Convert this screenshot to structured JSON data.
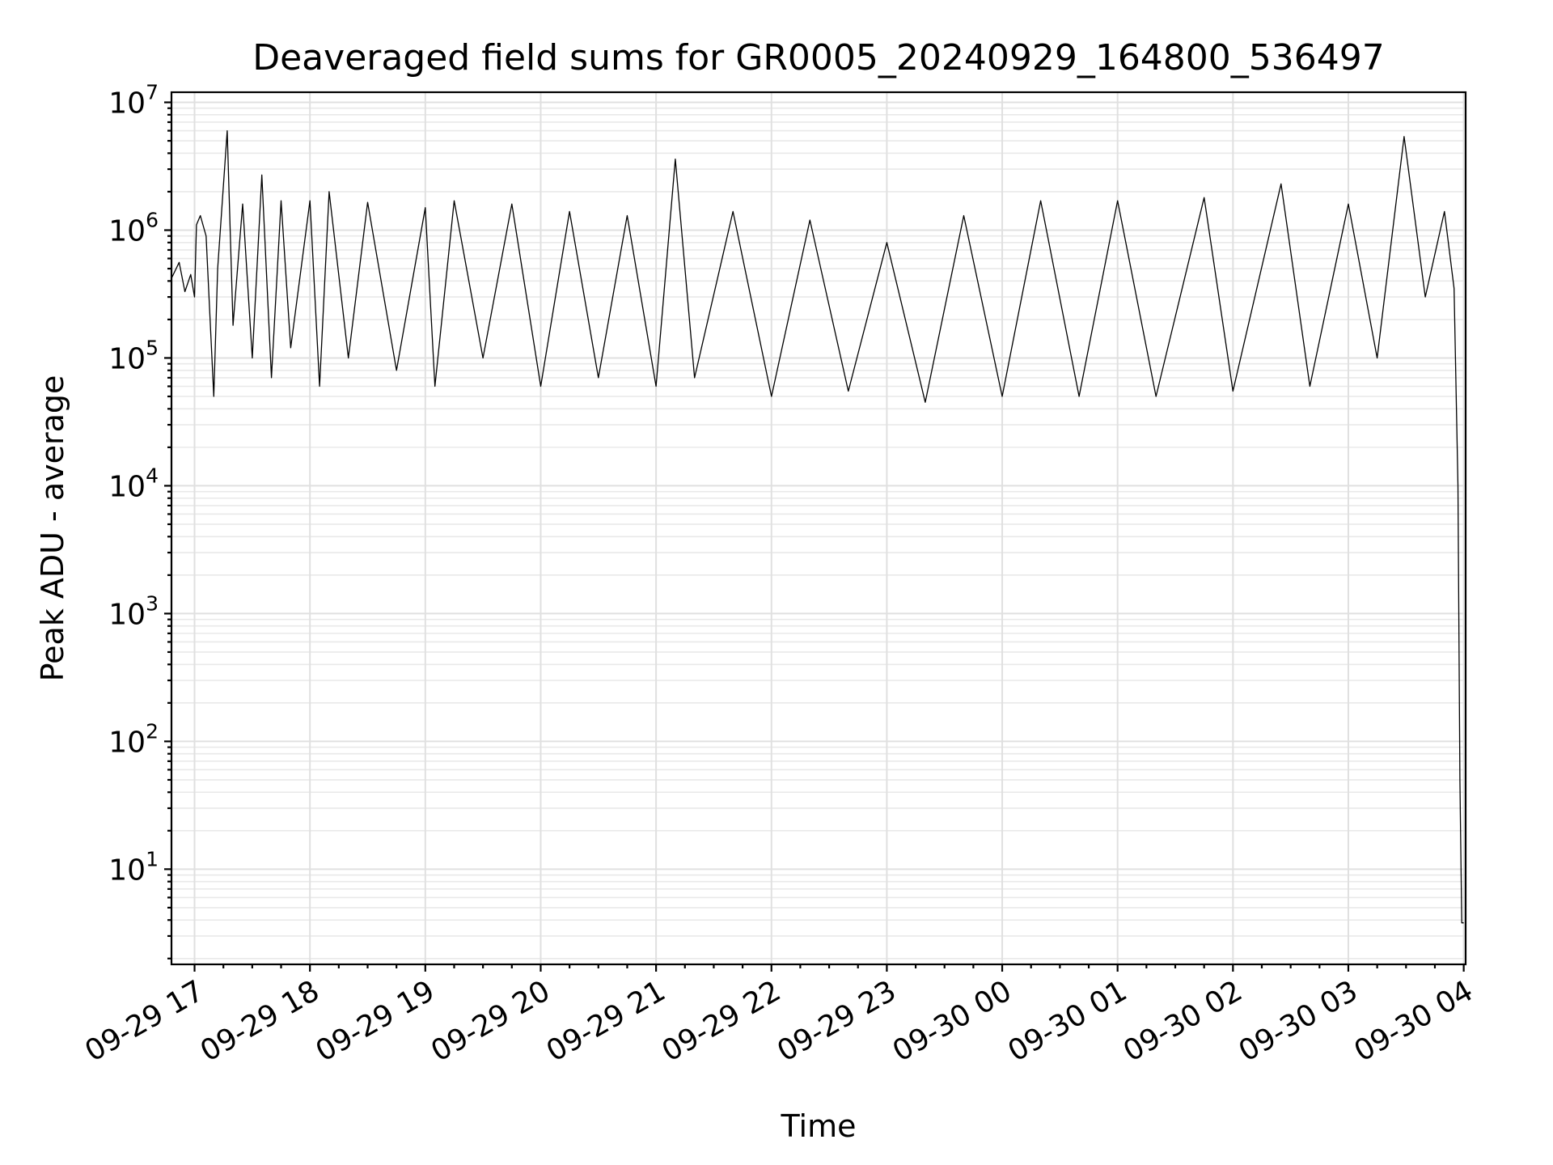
{
  "chart_data": {
    "type": "line",
    "title": "Deaveraged field sums for GR0005_20240929_164800_536497",
    "xlabel": "Time",
    "ylabel": "Peak ADU - average",
    "y_scale": "log",
    "ylim": [
      1.8,
      12000000
    ],
    "xlim": [
      "2024-09-29 16:48",
      "2024-09-30 04:01"
    ],
    "grid": "on (major and minor)",
    "line_color": "#000000",
    "x_ticks": [
      "09-29 17",
      "09-29 18",
      "09-29 19",
      "09-29 20",
      "09-29 21",
      "09-29 22",
      "09-29 23",
      "09-30 00",
      "09-30 01",
      "09-30 02",
      "09-30 03",
      "09-30 04"
    ],
    "y_ticks": [
      {
        "value": 10,
        "base": "10",
        "exp": "1"
      },
      {
        "value": 100,
        "base": "10",
        "exp": "2"
      },
      {
        "value": 1000,
        "base": "10",
        "exp": "3"
      },
      {
        "value": 10000,
        "base": "10",
        "exp": "4"
      },
      {
        "value": 100000,
        "base": "10",
        "exp": "5"
      },
      {
        "value": 1000000,
        "base": "10",
        "exp": "6"
      },
      {
        "value": 10000000,
        "base": "10",
        "exp": "7"
      }
    ],
    "series": [
      {
        "points": [
          [
            "2024-09-29 16:48",
            420000
          ],
          [
            "2024-09-29 16:52",
            560000
          ],
          [
            "2024-09-29 16:55",
            330000
          ],
          [
            "2024-09-29 16:58",
            450000
          ],
          [
            "2024-09-29 17:00",
            300000
          ],
          [
            "2024-09-29 17:01",
            1100000
          ],
          [
            "2024-09-29 17:03",
            1300000
          ],
          [
            "2024-09-29 17:06",
            900000
          ],
          [
            "2024-09-29 17:10",
            50000
          ],
          [
            "2024-09-29 17:12",
            500000
          ],
          [
            "2024-09-29 17:17",
            6000000
          ],
          [
            "2024-09-29 17:20",
            180000
          ],
          [
            "2024-09-29 17:25",
            1600000
          ],
          [
            "2024-09-29 17:30",
            100000
          ],
          [
            "2024-09-29 17:35",
            2700000
          ],
          [
            "2024-09-29 17:40",
            70000
          ],
          [
            "2024-09-29 17:45",
            1700000
          ],
          [
            "2024-09-29 17:50",
            120000
          ],
          [
            "2024-09-29 18:00",
            1700000
          ],
          [
            "2024-09-29 18:05",
            60000
          ],
          [
            "2024-09-29 18:10",
            2000000
          ],
          [
            "2024-09-29 18:20",
            100000
          ],
          [
            "2024-09-29 18:30",
            1650000
          ],
          [
            "2024-09-29 18:45",
            80000
          ],
          [
            "2024-09-29 19:00",
            1500000
          ],
          [
            "2024-09-29 19:05",
            60000
          ],
          [
            "2024-09-29 19:15",
            1700000
          ],
          [
            "2024-09-29 19:30",
            100000
          ],
          [
            "2024-09-29 19:45",
            1600000
          ],
          [
            "2024-09-29 20:00",
            60000
          ],
          [
            "2024-09-29 20:15",
            1400000
          ],
          [
            "2024-09-29 20:30",
            70000
          ],
          [
            "2024-09-29 20:45",
            1300000
          ],
          [
            "2024-09-29 21:00",
            60000
          ],
          [
            "2024-09-29 21:10",
            3600000
          ],
          [
            "2024-09-29 21:20",
            70000
          ],
          [
            "2024-09-29 21:40",
            1400000
          ],
          [
            "2024-09-29 22:00",
            50000
          ],
          [
            "2024-09-29 22:20",
            1200000
          ],
          [
            "2024-09-29 22:40",
            55000
          ],
          [
            "2024-09-29 23:00",
            800000
          ],
          [
            "2024-09-29 23:20",
            45000
          ],
          [
            "2024-09-29 23:40",
            1300000
          ],
          [
            "2024-09-30 00:00",
            50000
          ],
          [
            "2024-09-30 00:20",
            1700000
          ],
          [
            "2024-09-30 00:40",
            50000
          ],
          [
            "2024-09-30 01:00",
            1700000
          ],
          [
            "2024-09-30 01:20",
            50000
          ],
          [
            "2024-09-30 01:45",
            1800000
          ],
          [
            "2024-09-30 02:00",
            55000
          ],
          [
            "2024-09-30 02:25",
            2300000
          ],
          [
            "2024-09-30 02:40",
            60000
          ],
          [
            "2024-09-30 03:00",
            1600000
          ],
          [
            "2024-09-30 03:15",
            100000
          ],
          [
            "2024-09-30 03:29",
            5400000
          ],
          [
            "2024-09-30 03:40",
            300000
          ],
          [
            "2024-09-30 03:50",
            1400000
          ],
          [
            "2024-09-30 03:55",
            350000
          ],
          [
            "2024-09-30 03:57",
            10000
          ],
          [
            "2024-09-30 03:58",
            50
          ],
          [
            "2024-09-30 03:59",
            3.8
          ],
          [
            "2024-09-30 04:00",
            3.8
          ]
        ]
      }
    ]
  }
}
